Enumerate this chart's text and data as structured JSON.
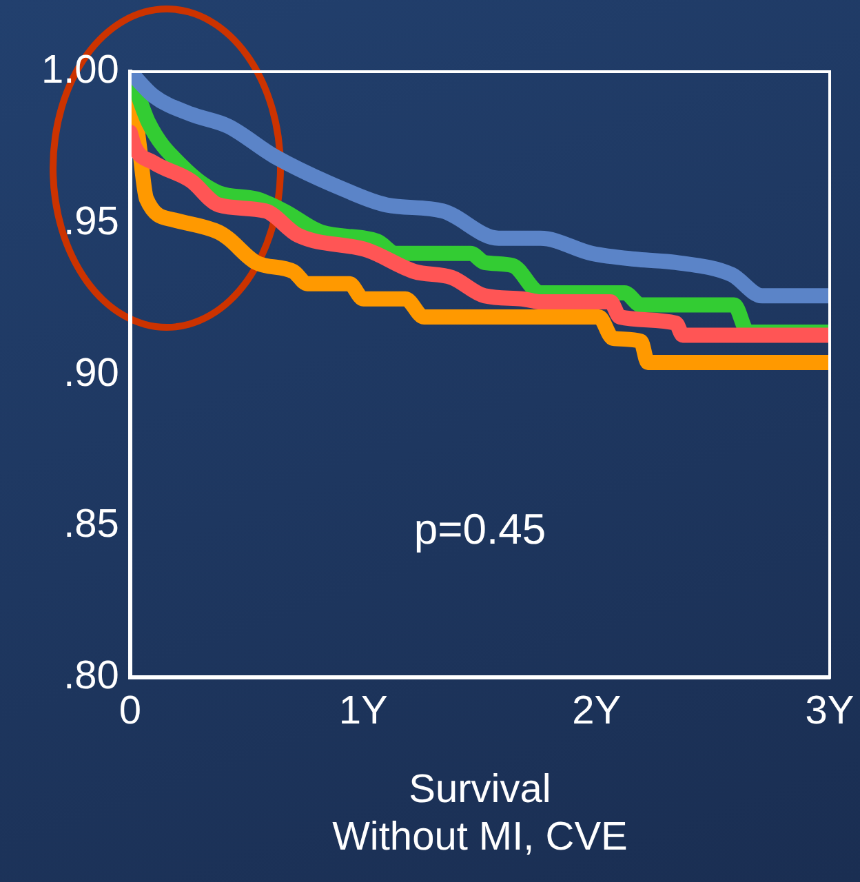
{
  "chart_data": {
    "type": "line",
    "xlabel": "Survival\nWithout MI, CVE",
    "annotations": [
      "p=0.45"
    ],
    "xlim": [
      0,
      3
    ],
    "xticks": [
      0,
      {
        "value": 1,
        "label": "1Y"
      },
      {
        "value": 2,
        "label": "2Y"
      },
      {
        "value": 3,
        "label": "3Y"
      }
    ],
    "ylim": [
      0.8,
      1.0
    ],
    "yticks": [
      {
        "value": 0.8,
        "label": ".80"
      },
      {
        "value": 0.85,
        "label": ".85"
      },
      {
        "value": 0.9,
        "label": ".90"
      },
      {
        "value": 0.95,
        "label": ".95"
      },
      {
        "value": 1.0,
        "label": "1.00"
      }
    ],
    "grid": false,
    "legend": false,
    "marker": "none",
    "line_style": "solid",
    "series": [
      {
        "color": "#5b84c8",
        "x": [
          0,
          0.1,
          0.26,
          0.42,
          0.62,
          0.92,
          1.1,
          1.34,
          1.58,
          1.76,
          1.98,
          2.18,
          2.34,
          2.58,
          2.71,
          3
        ],
        "values": [
          1.0,
          0.992,
          0.986,
          0.982,
          0.972,
          0.961,
          0.956,
          0.954,
          0.945,
          0.945,
          0.94,
          0.938,
          0.937,
          0.933,
          0.926,
          0.926
        ]
      },
      {
        "color": "#ff5555",
        "x": [
          0,
          0.02,
          0.1,
          0.26,
          0.38,
          0.58,
          0.72,
          1.02,
          1.22,
          1.38,
          1.52,
          1.68,
          1.76,
          2.06,
          2.1,
          2.34,
          2.37,
          3
        ],
        "values": [
          0.98,
          0.975,
          0.97,
          0.964,
          0.956,
          0.954,
          0.946,
          0.941,
          0.934,
          0.932,
          0.926,
          0.925,
          0.924,
          0.924,
          0.919,
          0.917,
          0.913,
          0.913
        ]
      },
      {
        "color": "#33cc33",
        "x": [
          0,
          0.08,
          0.22,
          0.38,
          0.54,
          0.66,
          0.82,
          1.06,
          1.14,
          1.46,
          1.52,
          1.64,
          1.76,
          2.12,
          2.19,
          2.59,
          2.65,
          3
        ],
        "values": [
          1.0,
          0.983,
          0.969,
          0.96,
          0.958,
          0.954,
          0.947,
          0.944,
          0.94,
          0.94,
          0.937,
          0.936,
          0.927,
          0.927,
          0.923,
          0.923,
          0.914,
          0.914
        ]
      },
      {
        "color": "#ff9900",
        "x": [
          0,
          0.04,
          0.07,
          0.19,
          0.38,
          0.42,
          0.54,
          0.7,
          0.76,
          0.94,
          1.0,
          1.18,
          1.26,
          2.01,
          2.07,
          2.19,
          2.22,
          3
        ],
        "values": [
          1.0,
          0.975,
          0.958,
          0.951,
          0.947,
          0.945,
          0.937,
          0.934,
          0.93,
          0.93,
          0.925,
          0.925,
          0.919,
          0.919,
          0.912,
          0.911,
          0.904,
          0.904
        ]
      }
    ]
  }
}
